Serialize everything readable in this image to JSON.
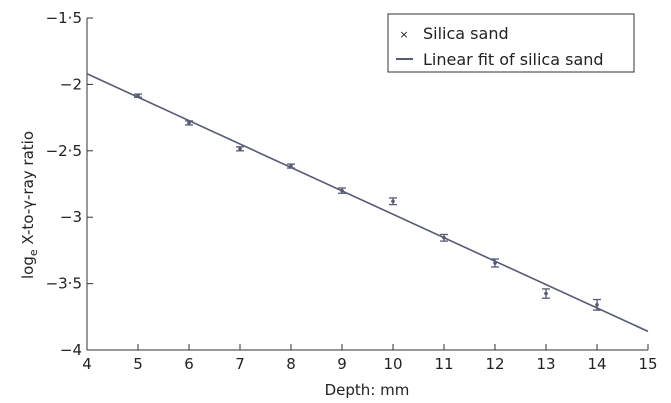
{
  "chart_data": {
    "type": "scatter",
    "title": "",
    "xlabel": "Depth: mm",
    "ylabel_prefix": "log",
    "ylabel_subscript": "e",
    "ylabel_suffix": " X-to-γ-ray ratio",
    "xlim": [
      4,
      15
    ],
    "ylim": [
      -4,
      -1.5
    ],
    "x_ticks": [
      4,
      5,
      6,
      7,
      8,
      9,
      10,
      11,
      12,
      13,
      14,
      15
    ],
    "x_tick_labels": [
      "4",
      "5",
      "6",
      "7",
      "8",
      "9",
      "10",
      "11",
      "12",
      "13",
      "14",
      "15"
    ],
    "y_ticks": [
      -1.5,
      -2,
      -2.5,
      -3,
      -3.5,
      -4
    ],
    "y_tick_labels": [
      "−1·5",
      "−2",
      "−2·5",
      "−3",
      "−3·5",
      "−4"
    ],
    "grid": false,
    "legend_position": "top-right",
    "series": [
      {
        "name": "Silica sand",
        "kind": "points-with-errorbars",
        "color": "#555a75",
        "x": [
          5,
          6,
          7,
          8,
          9,
          10,
          11,
          12,
          13,
          14
        ],
        "y": [
          -2.085,
          -2.29,
          -2.485,
          -2.615,
          -2.8,
          -2.88,
          -3.155,
          -3.345,
          -3.575,
          -3.66
        ],
        "err": [
          0.012,
          0.015,
          0.015,
          0.015,
          0.02,
          0.025,
          0.025,
          0.03,
          0.035,
          0.04
        ]
      },
      {
        "name": "Linear fit of silica sand",
        "kind": "line",
        "color": "#555a75",
        "x": [
          4,
          15
        ],
        "y": [
          -1.92,
          -3.86
        ]
      }
    ]
  }
}
